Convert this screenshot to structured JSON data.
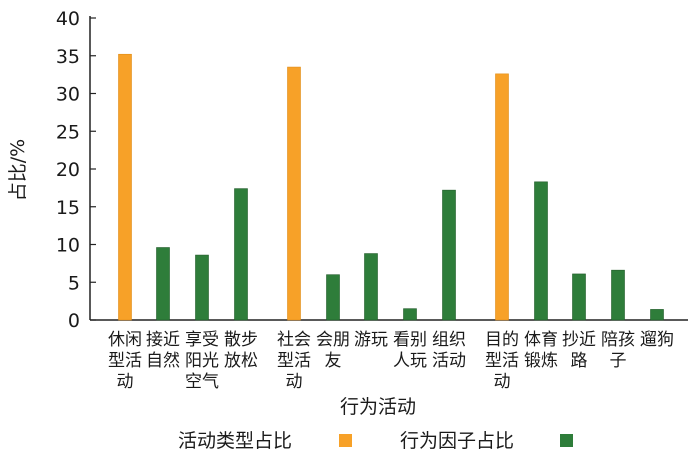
{
  "chart_data": {
    "type": "bar",
    "title": "",
    "xlabel": "行为活动",
    "ylabel": "占比/%",
    "ylim": [
      0,
      40
    ],
    "yticks": [
      0,
      5,
      10,
      15,
      20,
      25,
      30,
      35,
      40
    ],
    "legend_position": "bottom",
    "series": [
      {
        "name": "活动类型占比",
        "color": "#f7a128"
      },
      {
        "name": "行为因子占比",
        "color": "#2e7d3a"
      }
    ],
    "bars": [
      {
        "label": [
          "休闲",
          "型活",
          "动"
        ],
        "value": 35.2,
        "series": 0
      },
      {
        "label": [
          "接近",
          "自然"
        ],
        "value": 9.6,
        "series": 1
      },
      {
        "label": [
          "享受",
          "阳光",
          "空气"
        ],
        "value": 8.6,
        "series": 1
      },
      {
        "label": [
          "散步",
          "放松"
        ],
        "value": 17.4,
        "series": 1
      },
      {
        "label": [
          "社会",
          "型活",
          "动"
        ],
        "value": 33.5,
        "series": 0
      },
      {
        "label": [
          "会朋",
          "友"
        ],
        "value": 6.0,
        "series": 1
      },
      {
        "label": [
          "游玩"
        ],
        "value": 8.8,
        "series": 1
      },
      {
        "label": [
          "看别",
          "人玩"
        ],
        "value": 1.5,
        "series": 1
      },
      {
        "label": [
          "组织",
          "活动"
        ],
        "value": 17.2,
        "series": 1
      },
      {
        "label": [
          "目的",
          "型活",
          "动"
        ],
        "value": 32.6,
        "series": 0
      },
      {
        "label": [
          "体育",
          "锻炼"
        ],
        "value": 18.3,
        "series": 1
      },
      {
        "label": [
          "抄近",
          "路"
        ],
        "value": 6.1,
        "series": 1
      },
      {
        "label": [
          "陪孩",
          "子"
        ],
        "value": 6.6,
        "series": 1
      },
      {
        "label": [
          "遛狗"
        ],
        "value": 1.4,
        "series": 1
      }
    ]
  }
}
